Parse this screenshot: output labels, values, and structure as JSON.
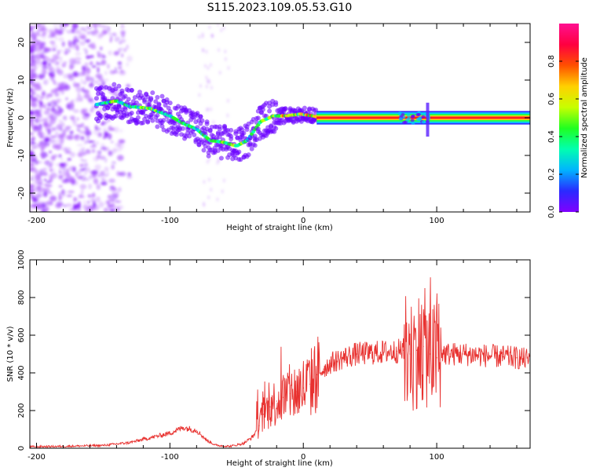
{
  "title": "S115.2023.109.05.53.G10",
  "chart_data": [
    {
      "type": "heatmap",
      "xlabel": "Height of straight line (km)",
      "ylabel": "Frequency (Hz)",
      "xlim": [
        -205,
        170
      ],
      "ylim": [
        -25,
        25
      ],
      "xticks": [
        -200,
        -100,
        0,
        100
      ],
      "yticks": [
        -20,
        -10,
        0,
        10,
        20
      ],
      "colorbar": {
        "label": "Normalized spectral amplitude",
        "range": [
          0,
          1
        ],
        "ticks": [
          0.0,
          0.2,
          0.4,
          0.6,
          0.8
        ],
        "colormap": [
          "#8000ff",
          "#2a2aff",
          "#00b4ff",
          "#00ffb0",
          "#20ff20",
          "#c8ff00",
          "#ffd000",
          "#ff5000",
          "#ff0040",
          "#ff1090"
        ]
      },
      "ridge": [
        {
          "x": -155,
          "y": 3.5,
          "amp": 0.35
        },
        {
          "x": -140,
          "y": 4.5,
          "amp": 0.45
        },
        {
          "x": -130,
          "y": 3.0,
          "amp": 0.4
        },
        {
          "x": -115,
          "y": 2.5,
          "amp": 0.45
        },
        {
          "x": -100,
          "y": 0.5,
          "amp": 0.4
        },
        {
          "x": -90,
          "y": -1.5,
          "amp": 0.45
        },
        {
          "x": -80,
          "y": -3.0,
          "amp": 0.4
        },
        {
          "x": -70,
          "y": -6.0,
          "amp": 0.4
        },
        {
          "x": -60,
          "y": -6.5,
          "amp": 0.45
        },
        {
          "x": -50,
          "y": -7.5,
          "amp": 0.5
        },
        {
          "x": -42,
          "y": -6.0,
          "amp": 0.4
        },
        {
          "x": -32,
          "y": -1.0,
          "amp": 0.45
        },
        {
          "x": -22,
          "y": 0.5,
          "amp": 0.55
        },
        {
          "x": -12,
          "y": 0.5,
          "amp": 0.65
        },
        {
          "x": -2,
          "y": 1.0,
          "amp": 0.6
        },
        {
          "x": 10,
          "y": 0.3,
          "amp": 0.7
        },
        {
          "x": 40,
          "y": 0.0,
          "amp": 0.85
        },
        {
          "x": 70,
          "y": 0.0,
          "amp": 0.85
        },
        {
          "x": 90,
          "y": 0.0,
          "amp": 0.8
        },
        {
          "x": 130,
          "y": 0.0,
          "amp": 0.9
        },
        {
          "x": 168,
          "y": 0.0,
          "amp": 0.9
        }
      ]
    },
    {
      "type": "line",
      "xlabel": "Height of straight line (km)",
      "ylabel": "SNR (10 * v/v)",
      "xlim": [
        -205,
        170
      ],
      "ylim": [
        0,
        1000
      ],
      "xticks": [
        -200,
        -100,
        0,
        100
      ],
      "yticks": [
        0,
        200,
        400,
        600,
        800,
        1000
      ],
      "color": "#e8312f",
      "series": [
        {
          "x": [
            -205,
            -180,
            -150,
            -130,
            -115,
            -100,
            -90,
            -80,
            -72,
            -65,
            -55,
            -45,
            -38,
            -33,
            -30,
            -25,
            -20,
            -15,
            -10,
            -5,
            0,
            5,
            10,
            15,
            20,
            30,
            40,
            50,
            60,
            70,
            75,
            80,
            85,
            90,
            95,
            100,
            103,
            106,
            110,
            120,
            130,
            140,
            150,
            160,
            170
          ],
          "values": [
            8,
            10,
            15,
            30,
            55,
            80,
            110,
            95,
            40,
            15,
            10,
            25,
            60,
            120,
            180,
            220,
            250,
            270,
            290,
            300,
            320,
            340,
            390,
            420,
            450,
            480,
            500,
            505,
            510,
            515,
            520,
            500,
            520,
            540,
            500,
            480,
            520,
            500,
            500,
            500,
            495,
            490,
            485,
            480,
            470
          ]
        }
      ]
    }
  ]
}
